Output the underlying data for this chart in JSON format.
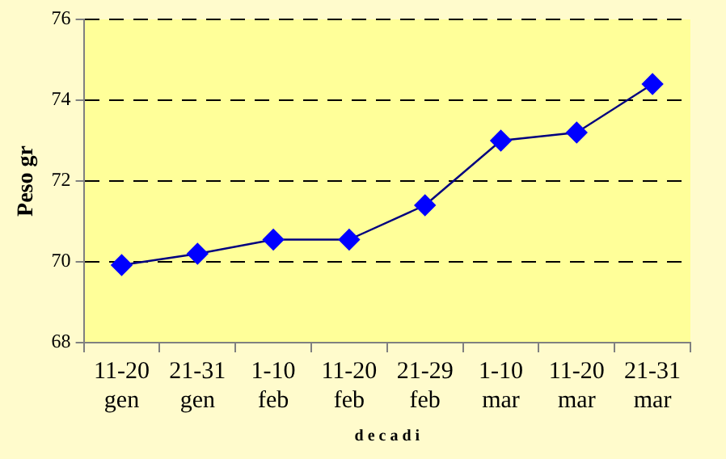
{
  "chart_data": {
    "type": "line",
    "xlabel": "d e c a d i",
    "ylabel": "Peso gr",
    "categories": [
      "11-20\ngen",
      "21-31\ngen",
      "1-10\nfeb",
      "11-20\nfeb",
      "21-29\nfeb",
      "1-10\nmar",
      "11-20\nmar",
      "21-31\nmar"
    ],
    "series": [
      {
        "color": "#0000ff",
        "values": [
          69.92,
          70.2,
          70.55,
          70.55,
          71.4,
          73.0,
          73.2,
          74.4
        ]
      }
    ],
    "ylim": [
      68,
      76
    ],
    "yticks": [
      68,
      70,
      72,
      74,
      76
    ],
    "grid": "y",
    "legend": false,
    "marker": "diamond",
    "line_style": "solid"
  }
}
